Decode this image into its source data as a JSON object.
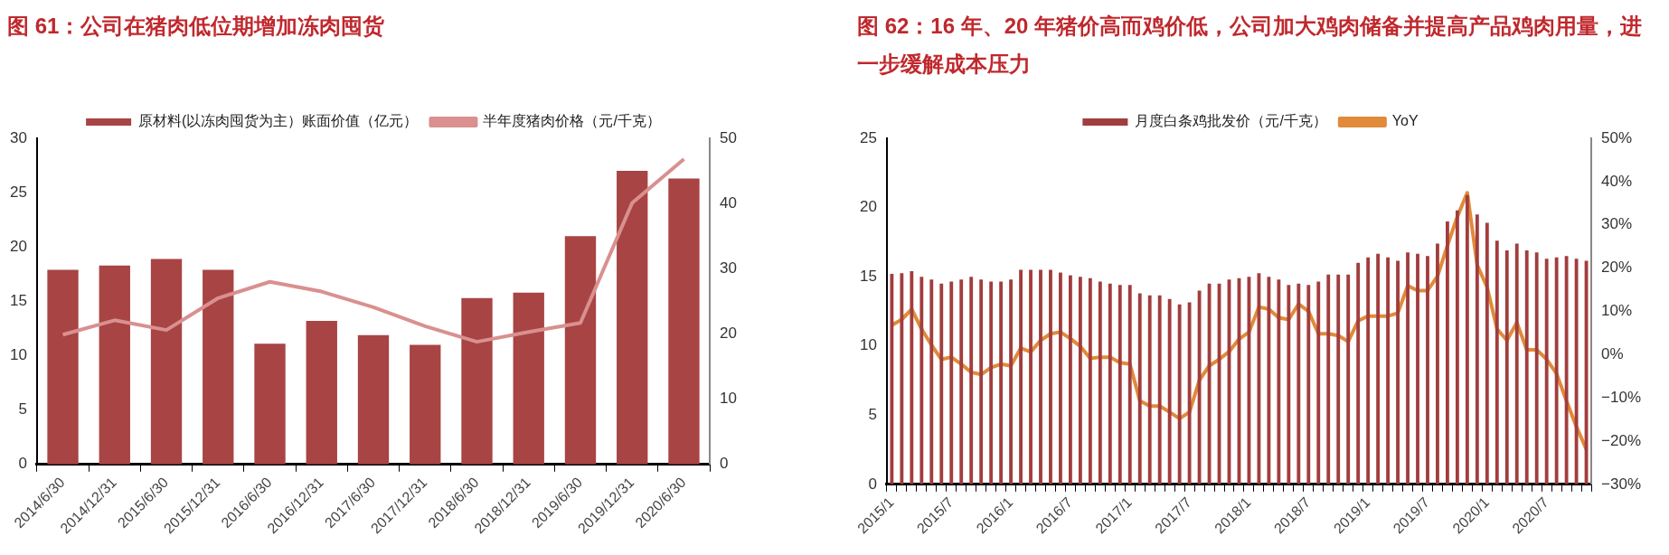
{
  "chart_data": [
    {
      "type": "bar",
      "title": "图 61：公司在猪肉低位期增加冻肉囤货",
      "categories": [
        "2014/6/30",
        "2014/12/31",
        "2015/6/30",
        "2015/12/31",
        "2016/6/30",
        "2016/12/31",
        "2017/6/30",
        "2017/12/31",
        "2018/6/30",
        "2018/12/31",
        "2019/6/30",
        "2019/12/31",
        "2020/6/30"
      ],
      "series": [
        {
          "name": "原材料(以冻肉囤货为主）账面价值（亿元）",
          "color": "#a84444",
          "values": [
            17.9,
            18.3,
            18.9,
            17.9,
            11.1,
            13.2,
            11.9,
            11.0,
            15.3,
            15.8,
            21.0,
            27.0,
            26.3
          ]
        },
        {
          "name": "半年度猪肉价格（元/千克）",
          "type": "line",
          "axis": "y2",
          "color": "#d9908f",
          "values": [
            19.9,
            22.1,
            20.6,
            25.5,
            28.0,
            26.5,
            24.1,
            21.2,
            18.8,
            20.3,
            21.7,
            40.1,
            46.8
          ]
        }
      ],
      "ylim": [
        0,
        30
      ],
      "yticks": [
        0,
        5,
        10,
        15,
        20,
        25,
        30
      ],
      "y2lim": [
        0,
        50
      ],
      "y2ticks": [
        0,
        10,
        20,
        30,
        40,
        50
      ],
      "legend": "top",
      "grid": false
    },
    {
      "type": "bar",
      "title": "图 62：16 年、20 年猪价高而鸡价低，公司加大鸡肉储备并提高产品鸡肉用量，进一步缓解成本压力",
      "categories": [
        "2015/1",
        null,
        null,
        null,
        null,
        null,
        "2015/7",
        null,
        null,
        null,
        null,
        null,
        "2016/1",
        null,
        null,
        null,
        null,
        null,
        "2016/7",
        null,
        null,
        null,
        null,
        null,
        "2017/1",
        null,
        null,
        null,
        null,
        null,
        "2017/7",
        null,
        null,
        null,
        null,
        null,
        "2018/1",
        null,
        null,
        null,
        null,
        null,
        "2018/7",
        null,
        null,
        null,
        null,
        null,
        "2019/1",
        null,
        null,
        null,
        null,
        null,
        "2019/7",
        null,
        null,
        null,
        null,
        null,
        "2020/1",
        null,
        null,
        null,
        null,
        null,
        "2020/7",
        null,
        null,
        null,
        null
      ],
      "series": [
        {
          "name": "月度白条鸡批发价（元/千克）",
          "color": "#a23d3d",
          "values": [
            15.2,
            15.25,
            15.4,
            15.0,
            14.8,
            14.5,
            14.65,
            14.8,
            15.0,
            14.8,
            14.65,
            14.65,
            14.8,
            15.5,
            15.5,
            15.5,
            15.5,
            15.3,
            15.1,
            15.0,
            14.9,
            14.65,
            14.5,
            14.4,
            14.4,
            13.8,
            13.65,
            13.65,
            13.4,
            13.0,
            13.15,
            14.0,
            14.5,
            14.5,
            14.8,
            14.9,
            15.0,
            15.25,
            15.0,
            14.8,
            14.4,
            14.5,
            14.4,
            14.65,
            15.15,
            15.15,
            15.15,
            16.0,
            16.4,
            16.65,
            16.4,
            16.15,
            16.75,
            16.65,
            16.5,
            17.4,
            19.0,
            19.8,
            20.9,
            19.5,
            18.9,
            17.6,
            16.9,
            17.4,
            16.9,
            16.75,
            16.3,
            16.4,
            16.5,
            16.3,
            16.15
          ]
        },
        {
          "name": "YoY",
          "type": "line",
          "axis": "y2",
          "color": "#e08a3a",
          "values": [
            6.8,
            8.1,
            10.5,
            5.9,
            2.2,
            -1.1,
            -0.6,
            -2.2,
            -4.1,
            -4.6,
            -3.0,
            -2.2,
            -2.6,
            1.5,
            0.6,
            3.3,
            4.8,
            5.2,
            3.7,
            1.9,
            -0.9,
            -0.6,
            -0.6,
            -1.9,
            -2.2,
            -10.7,
            -11.9,
            -11.9,
            -13.3,
            -14.8,
            -13.3,
            -5.9,
            -2.6,
            -1.1,
            0.7,
            3.6,
            5.2,
            11.0,
            10.5,
            8.5,
            8.1,
            11.7,
            10.0,
            4.8,
            4.8,
            4.4,
            3.0,
            7.8,
            8.9,
            8.9,
            8.9,
            9.6,
            15.9,
            14.8,
            14.8,
            18.1,
            25.2,
            31.9,
            37.4,
            20.7,
            15.6,
            5.9,
            3.3,
            7.4,
            1.1,
            1.1,
            -1.1,
            -4.4,
            -10.7,
            -16.7,
            -21.9
          ]
        }
      ],
      "ylim": [
        0,
        25
      ],
      "yticks": [
        0,
        5,
        10,
        15,
        20,
        25
      ],
      "y2lim": [
        -30,
        50
      ],
      "y2ticks": [
        {
          "value": -30,
          "label": "−30%"
        },
        {
          "value": -20,
          "label": "−20%"
        },
        {
          "value": -10,
          "label": "−10%"
        },
        {
          "value": 0,
          "label": "0%"
        },
        {
          "value": 10,
          "label": "10%"
        },
        {
          "value": 20,
          "label": "20%"
        },
        {
          "value": 30,
          "label": "30%"
        },
        {
          "value": 40,
          "label": "40%"
        },
        {
          "value": 50,
          "label": "50%"
        }
      ],
      "legend": "top",
      "grid": false
    }
  ]
}
